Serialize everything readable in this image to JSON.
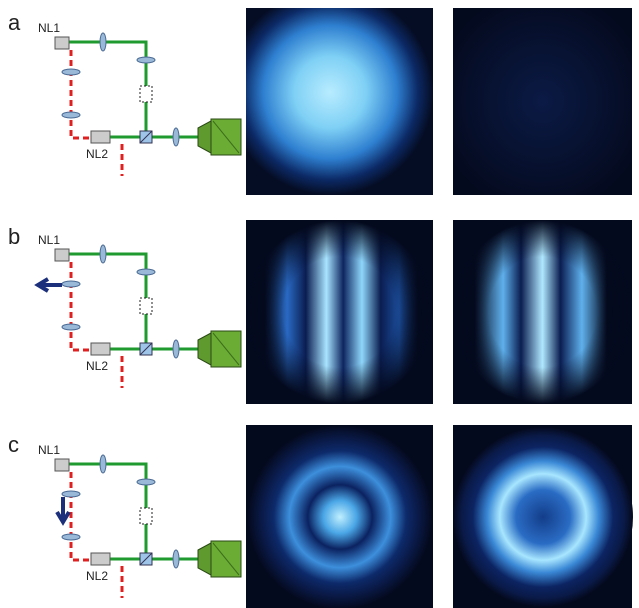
{
  "panels": [
    {
      "label": "a",
      "nl1": "NL1",
      "nl2": "NL2"
    },
    {
      "label": "b",
      "nl1": "NL1",
      "nl2": "NL2"
    },
    {
      "label": "c",
      "nl1": "NL1",
      "nl2": "NL2"
    }
  ]
}
